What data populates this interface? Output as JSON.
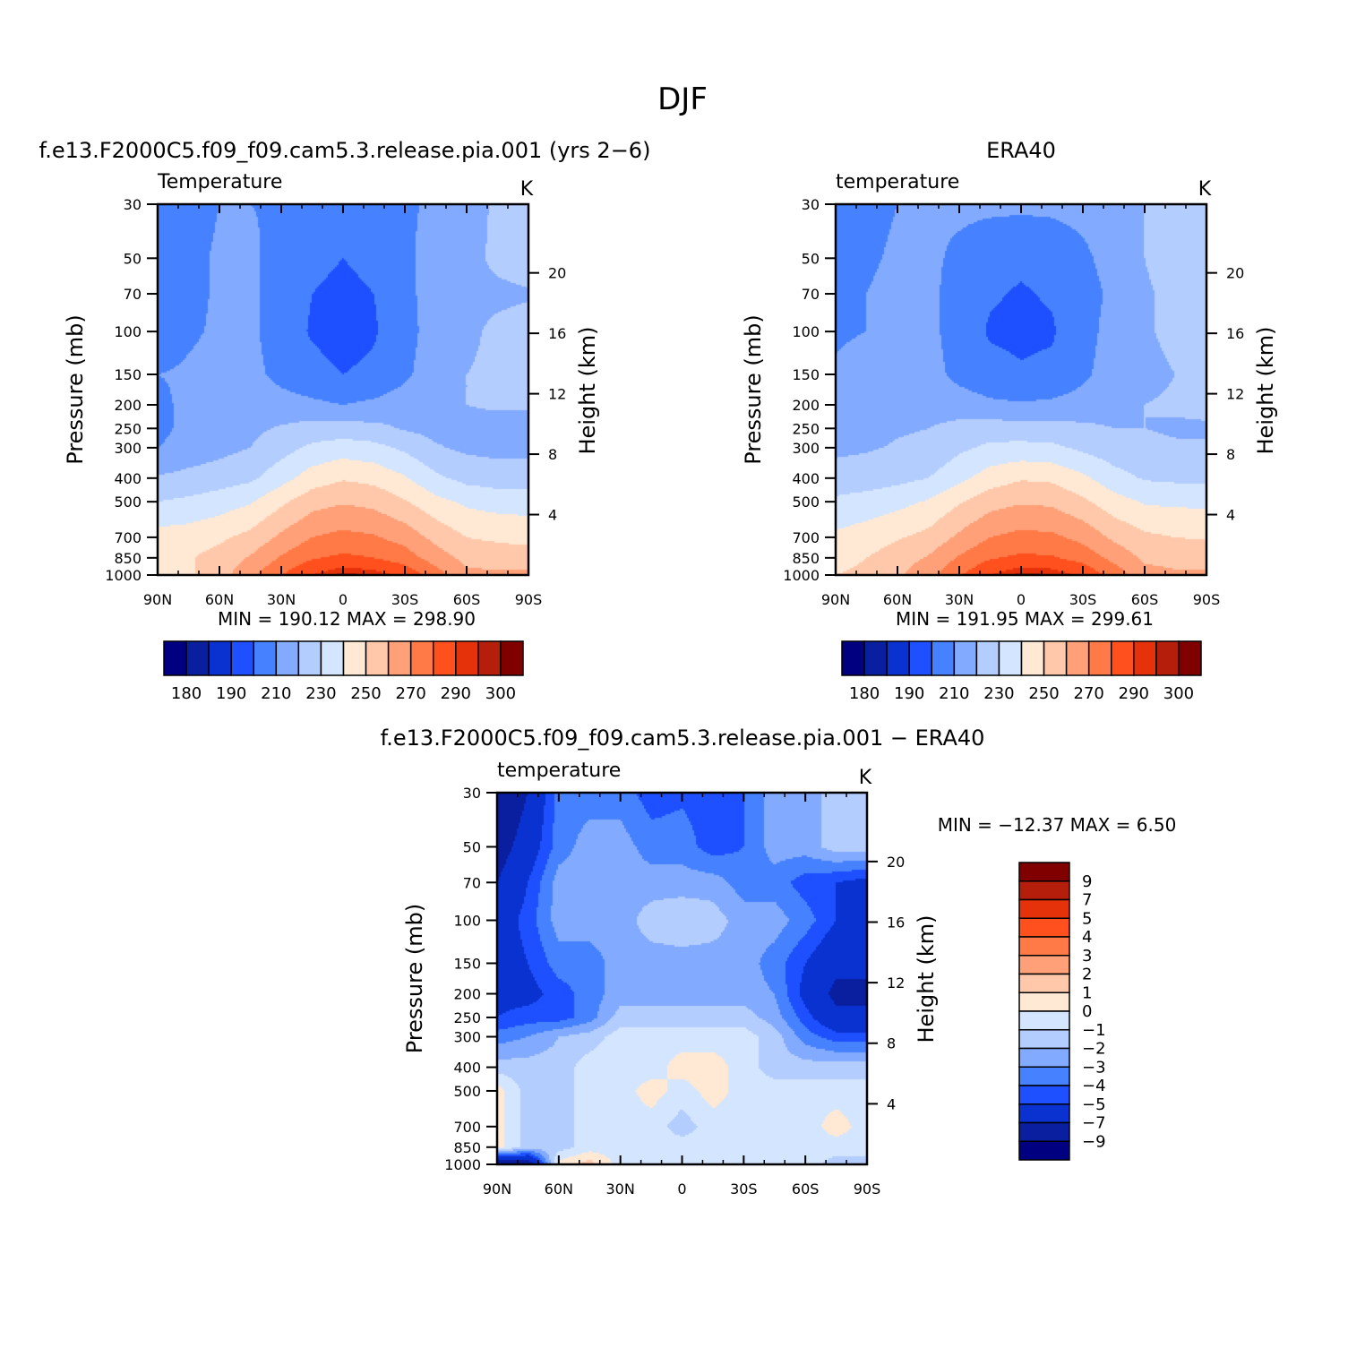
{
  "figure": {
    "title": "DJF"
  },
  "chart_data": [
    {
      "type": "heatmap",
      "id": "model",
      "title": "f.e13.F2000C5.f09_f09.cam5.3.release.pia.001 (yrs 2−6)",
      "left_label": "Temperature",
      "right_label": "K",
      "ylabel": "Pressure (mb)",
      "ylabel_right": "Height (km)",
      "x_tick_labels": [
        "90N",
        "60N",
        "30N",
        "0",
        "30S",
        "60S",
        "90S"
      ],
      "x_values": [
        90,
        60,
        30,
        0,
        -30,
        -60,
        -90
      ],
      "xlim": [
        90,
        -90
      ],
      "y_tick_labels": [
        "30",
        "50",
        "70",
        "100",
        "150",
        "200",
        "250",
        "300",
        "400",
        "500",
        "700",
        "850",
        "1000"
      ],
      "y_values": [
        30,
        50,
        70,
        100,
        150,
        200,
        250,
        300,
        400,
        500,
        700,
        850,
        1000
      ],
      "ylim": [
        1000,
        30
      ],
      "y_scale": "log",
      "height_tick_labels": [
        "20",
        "16",
        "12",
        "8",
        "4"
      ],
      "height_values": [
        20,
        16,
        12,
        8,
        4
      ],
      "stats": "MIN = 190.12   MAX = 298.90",
      "min": 190.12,
      "max": 298.9,
      "colorbar": {
        "orientation": "horizontal",
        "labels": [
          "180",
          "190",
          "210",
          "230",
          "250",
          "270",
          "290",
          "300"
        ],
        "levels": [
          180,
          185,
          190,
          200,
          210,
          220,
          230,
          240,
          250,
          260,
          270,
          280,
          290,
          295,
          300
        ]
      },
      "field": {
        "lats": [
          90,
          75,
          60,
          45,
          30,
          15,
          0,
          -15,
          -30,
          -45,
          -60,
          -75,
          -90
        ],
        "pressures": [
          30,
          50,
          70,
          100,
          150,
          200,
          250,
          300,
          400,
          500,
          700,
          850,
          1000
        ],
        "values": [
          [
            203,
            207,
            210,
            210,
            209,
            207,
            206,
            207,
            209,
            211,
            215,
            222,
            225
          ],
          [
            203,
            208,
            211,
            212,
            206,
            202,
            200,
            202,
            208,
            214,
            217,
            222,
            225
          ],
          [
            204,
            208,
            211,
            212,
            205,
            200,
            198,
            200,
            207,
            215,
            218,
            218,
            219
          ],
          [
            205,
            209,
            211,
            212,
            205,
            199,
            196,
            199,
            206,
            215,
            218,
            222,
            224
          ],
          [
            210,
            211,
            212,
            213,
            207,
            203,
            200,
            202,
            208,
            216,
            220,
            222,
            222
          ],
          [
            208,
            212,
            215,
            215,
            214,
            212,
            210,
            212,
            215,
            217,
            220,
            221,
            221
          ],
          [
            207,
            213,
            216,
            218,
            221,
            224,
            224,
            223,
            219,
            217,
            218,
            217,
            217
          ],
          [
            210,
            214,
            217,
            220,
            226,
            232,
            235,
            233,
            228,
            221,
            218,
            217,
            217
          ],
          [
            221,
            223,
            225,
            228,
            236,
            245,
            249,
            247,
            241,
            232,
            227,
            225,
            225
          ],
          [
            230,
            232,
            235,
            239,
            248,
            256,
            259,
            257,
            251,
            243,
            238,
            236,
            236
          ],
          [
            244,
            245,
            248,
            253,
            262,
            270,
            273,
            271,
            266,
            257,
            250,
            248,
            246
          ],
          [
            249,
            249,
            254,
            261,
            271,
            279,
            282,
            280,
            275,
            265,
            257,
            256,
            256
          ],
          [
            250,
            248,
            256,
            267,
            280,
            290,
            297,
            294,
            287,
            275,
            262,
            262,
            262
          ]
        ]
      }
    },
    {
      "type": "heatmap",
      "id": "obs",
      "title": "ERA40",
      "left_label": "temperature",
      "right_label": "K",
      "ylabel": "Pressure (mb)",
      "ylabel_right": "Height (km)",
      "x_tick_labels": [
        "90N",
        "60N",
        "30N",
        "0",
        "30S",
        "60S",
        "90S"
      ],
      "x_values": [
        90,
        60,
        30,
        0,
        -30,
        -60,
        -90
      ],
      "xlim": [
        90,
        -90
      ],
      "y_tick_labels": [
        "30",
        "50",
        "70",
        "100",
        "150",
        "200",
        "250",
        "300",
        "400",
        "500",
        "700",
        "850",
        "1000"
      ],
      "y_values": [
        30,
        50,
        70,
        100,
        150,
        200,
        250,
        300,
        400,
        500,
        700,
        850,
        1000
      ],
      "ylim": [
        1000,
        30
      ],
      "y_scale": "log",
      "height_tick_labels": [
        "20",
        "16",
        "12",
        "8",
        "4"
      ],
      "height_values": [
        20,
        16,
        12,
        8,
        4
      ],
      "stats": "MIN = 191.95   MAX = 299.61",
      "min": 191.95,
      "max": 299.61,
      "colorbar": {
        "orientation": "horizontal",
        "labels": [
          "180",
          "190",
          "210",
          "230",
          "250",
          "270",
          "290",
          "300"
        ],
        "levels": [
          180,
          185,
          190,
          200,
          210,
          220,
          230,
          240,
          250,
          260,
          270,
          280,
          290,
          295,
          300
        ]
      },
      "field": {
        "lats": [
          90,
          75,
          60,
          45,
          30,
          15,
          0,
          -15,
          -30,
          -45,
          -60,
          -75,
          -90
        ],
        "pressures": [
          30,
          50,
          70,
          100,
          150,
          200,
          250,
          300,
          400,
          500,
          700,
          850,
          1000
        ],
        "values": [
          [
            208,
            208,
            210,
            211,
            212,
            212,
            212,
            212,
            213,
            215,
            220,
            224,
            226
          ],
          [
            209,
            209,
            211,
            212,
            208,
            204,
            202,
            204,
            208,
            214,
            220,
            224,
            226
          ],
          [
            209,
            210,
            212,
            213,
            205,
            201,
            199,
            201,
            206,
            212,
            219,
            222,
            224
          ],
          [
            209,
            210,
            213,
            213,
            205,
            199,
            198,
            199,
            206,
            214,
            219,
            222,
            227
          ],
          [
            211,
            213,
            215,
            214,
            207,
            203,
            201,
            202,
            208,
            215,
            218,
            220,
            222
          ],
          [
            214,
            215,
            217,
            216,
            215,
            212,
            211,
            212,
            214,
            217,
            220,
            221,
            222
          ],
          [
            215,
            216,
            219,
            220,
            223,
            225,
            224,
            224,
            222,
            220,
            220,
            219,
            219
          ],
          [
            218,
            219,
            221,
            222,
            228,
            232,
            233,
            232,
            228,
            224,
            222,
            221,
            221
          ],
          [
            224,
            225,
            227,
            230,
            237,
            245,
            249,
            248,
            242,
            234,
            229,
            228,
            227
          ],
          [
            232,
            234,
            237,
            241,
            249,
            256,
            259,
            258,
            252,
            244,
            239,
            238,
            238
          ],
          [
            242,
            245,
            249,
            253,
            262,
            270,
            273,
            272,
            267,
            258,
            252,
            250,
            249
          ],
          [
            247,
            250,
            255,
            261,
            271,
            279,
            282,
            281,
            276,
            267,
            258,
            256,
            256
          ],
          [
            250,
            252,
            258,
            267,
            279,
            290,
            297,
            295,
            288,
            276,
            264,
            262,
            262
          ]
        ]
      }
    },
    {
      "type": "heatmap",
      "id": "diff",
      "title": "f.e13.F2000C5.f09_f09.cam5.3.release.pia.001 − ERA40",
      "left_label": "temperature",
      "right_label": "K",
      "ylabel": "Pressure (mb)",
      "ylabel_right": "Height (km)",
      "x_tick_labels": [
        "90N",
        "60N",
        "30N",
        "0",
        "30S",
        "60S",
        "90S"
      ],
      "x_values": [
        90,
        60,
        30,
        0,
        -30,
        -60,
        -90
      ],
      "xlim": [
        90,
        -90
      ],
      "y_tick_labels": [
        "30",
        "50",
        "70",
        "100",
        "150",
        "200",
        "250",
        "300",
        "400",
        "500",
        "700",
        "850",
        "1000"
      ],
      "y_values": [
        30,
        50,
        70,
        100,
        150,
        200,
        250,
        300,
        400,
        500,
        700,
        850,
        1000
      ],
      "ylim": [
        1000,
        30
      ],
      "y_scale": "log",
      "height_tick_labels": [
        "20",
        "16",
        "12",
        "8",
        "4"
      ],
      "height_values": [
        20,
        16,
        12,
        8,
        4
      ],
      "stats": "MIN = −12.37   MAX =    6.50",
      "min": -12.37,
      "max": 6.5,
      "colorbar": {
        "orientation": "vertical",
        "labels": [
          "9",
          "7",
          "5",
          "4",
          "3",
          "2",
          "1",
          "0",
          "−1",
          "−2",
          "−3",
          "−4",
          "−5",
          "−7",
          "−9"
        ],
        "levels": [
          -9,
          -7,
          -5,
          -4,
          -3,
          -2,
          -1,
          0,
          1,
          2,
          3,
          4,
          5,
          7,
          9
        ]
      },
      "field": {
        "lats": [
          90,
          75,
          60,
          45,
          30,
          15,
          0,
          -15,
          -30,
          -45,
          -60,
          -75,
          -90
        ],
        "pressures": [
          30,
          50,
          70,
          100,
          150,
          200,
          250,
          300,
          400,
          500,
          700,
          850,
          1000
        ],
        "values": [
          [
            -9,
            -7,
            -3.5,
            -3.5,
            -3.5,
            -4.5,
            -4.2,
            -4.5,
            -4,
            -2.5,
            -2.5,
            -1.5,
            -1.5
          ],
          [
            -8,
            -6,
            -3.5,
            -2.5,
            -2.5,
            -3.5,
            -3.5,
            -4.5,
            -4,
            -2.5,
            -2.5,
            -1.5,
            -1.5
          ],
          [
            -7,
            -5,
            -2.5,
            -2.5,
            -2.5,
            -2.5,
            -2.5,
            -2.5,
            -3.5,
            -3.5,
            -4.5,
            -5,
            -5.5
          ],
          [
            -6,
            -4.5,
            -2.5,
            -2.5,
            -2.5,
            -1.5,
            -1.2,
            -1.5,
            -2.5,
            -2.5,
            -3.5,
            -5,
            -6
          ],
          [
            -6,
            -5,
            -3.5,
            -3.5,
            -2.5,
            -2.5,
            -2.5,
            -2.5,
            -2.5,
            -3.5,
            -5,
            -6.5,
            -6.5
          ],
          [
            -5.5,
            -5.5,
            -4.5,
            -3.5,
            -2.5,
            -2.5,
            -2.5,
            -2.5,
            -2.5,
            -3,
            -5.5,
            -7.5,
            -7.5
          ],
          [
            -5,
            -4.5,
            -4.5,
            -3.5,
            -1.5,
            -1.5,
            -1.5,
            -1.5,
            -1.5,
            -2.5,
            -4.5,
            -6.5,
            -6.5
          ],
          [
            -3.5,
            -3,
            -2,
            -1.5,
            -0.5,
            -0.5,
            -0.5,
            -0.5,
            -0.5,
            -1.5,
            -3.5,
            -4.5,
            -4.5
          ],
          [
            -1.5,
            -1.5,
            -1.5,
            -0.5,
            -0.5,
            -0.5,
            0.5,
            0.5,
            -0.5,
            -1.5,
            -1.5,
            -1.5,
            -1.5
          ],
          [
            0.5,
            -1.5,
            -1.5,
            -0.5,
            -0.5,
            0.5,
            -0.5,
            0.5,
            -0.5,
            -0.5,
            -0.5,
            -0.5,
            -0.5
          ],
          [
            0.5,
            -1.5,
            -1.5,
            -0.5,
            -0.5,
            -0.5,
            -1.5,
            -0.5,
            -0.5,
            -0.5,
            -0.5,
            0.5,
            -0.5
          ],
          [
            0.5,
            -1.5,
            -1.5,
            -0.5,
            -0.5,
            -0.5,
            -0.5,
            -0.5,
            -0.5,
            -0.5,
            -0.5,
            -0.5,
            -0.5
          ],
          [
            -9,
            -9,
            0.5,
            1.5,
            -0.5,
            -0.5,
            -0.5,
            -0.5,
            -0.5,
            -0.5,
            -0.5,
            -1.5,
            -1.5
          ]
        ]
      }
    }
  ],
  "colors": {
    "temperature_fills": [
      "#000080",
      "#0a1ea0",
      "#0a32d0",
      "#1e50ff",
      "#4682ff",
      "#82aaff",
      "#b4cdff",
      "#d4e6ff",
      "#ffe8d4",
      "#ffc8aa",
      "#ffa078",
      "#ff7a46",
      "#ff501e",
      "#e6320a",
      "#b41e0a",
      "#800000"
    ],
    "difference_fills": [
      "#000080",
      "#0a1ea0",
      "#0a32d0",
      "#1e50ff",
      "#4682ff",
      "#82aaff",
      "#b4cdff",
      "#d4e6ff",
      "#ffe8d4",
      "#ffc8aa",
      "#ffa078",
      "#ff7a46",
      "#ff501e",
      "#e6320a",
      "#b41e0a",
      "#800000"
    ]
  }
}
